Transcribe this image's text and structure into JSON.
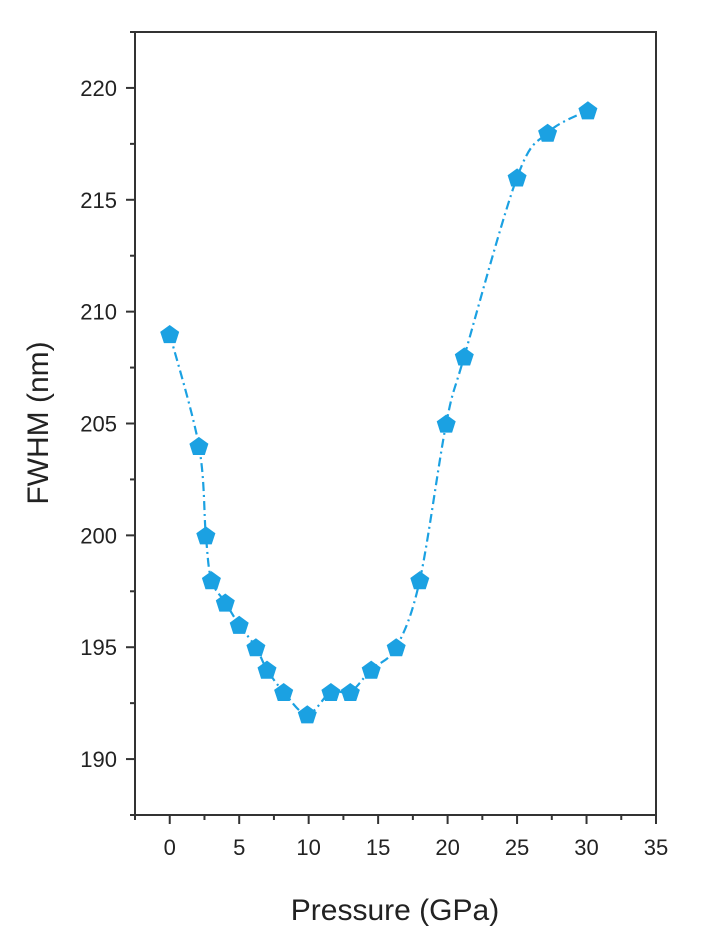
{
  "chart_data": {
    "type": "line",
    "title": "",
    "xlabel": "Pressure (GPa)",
    "ylabel": "FWHM (nm)",
    "xlim": [
      -2.5,
      35
    ],
    "ylim": [
      187.5,
      222.5
    ],
    "x_ticks": [
      0,
      5,
      10,
      15,
      20,
      25,
      30,
      35
    ],
    "x_tick_labels": [
      "0",
      "5",
      "10",
      "15",
      "20",
      "25",
      "30",
      "35"
    ],
    "y_ticks": [
      190,
      195,
      200,
      205,
      210,
      215,
      220
    ],
    "y_tick_labels": [
      "190",
      "195",
      "200",
      "205",
      "210",
      "215",
      "220"
    ],
    "grid": false,
    "legend": "none",
    "marker": "pentagon",
    "line_style": "dash-dot",
    "color": "#1BA1E2",
    "series": [
      {
        "x": [
          0,
          2.1,
          2.6,
          3.0,
          4.0,
          5.0,
          6.2,
          7.0,
          8.2,
          9.9,
          11.6,
          13.0,
          14.5,
          16.3,
          18.0,
          19.9,
          21.2,
          25.0,
          27.2,
          30.1
        ],
        "y": [
          209,
          204,
          200,
          198,
          197,
          196,
          195,
          194,
          193,
          192,
          193,
          193,
          194,
          195,
          198,
          205,
          208,
          216,
          218,
          219
        ]
      }
    ]
  }
}
